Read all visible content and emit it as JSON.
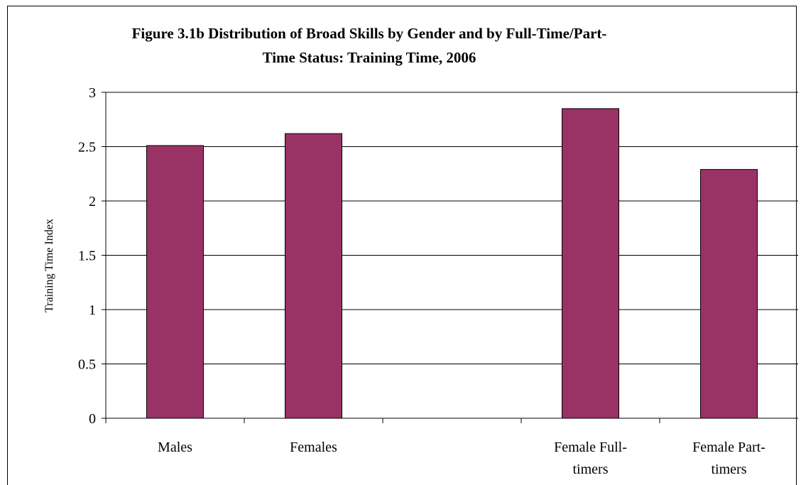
{
  "chart_data": {
    "type": "bar",
    "title_line1": "Figure 3.1b Distribution of Broad Skills by Gender and by Full-Time/Part-",
    "title_line2": "Time Status: Training Time, 2006",
    "xlabel": "",
    "ylabel": "Training Time Index",
    "ylim": [
      0,
      3
    ],
    "yticks": [
      "0",
      "0.5",
      "1",
      "1.5",
      "2",
      "2.5",
      "3"
    ],
    "categories": [
      [
        "Males"
      ],
      [
        "Females"
      ],
      [],
      [
        "Female Full-",
        "timers"
      ],
      [
        "Female Part-",
        "timers"
      ]
    ],
    "values": [
      2.51,
      2.62,
      null,
      2.85,
      2.29
    ],
    "bar_color": "#993366",
    "grid": true,
    "legend": "none"
  }
}
